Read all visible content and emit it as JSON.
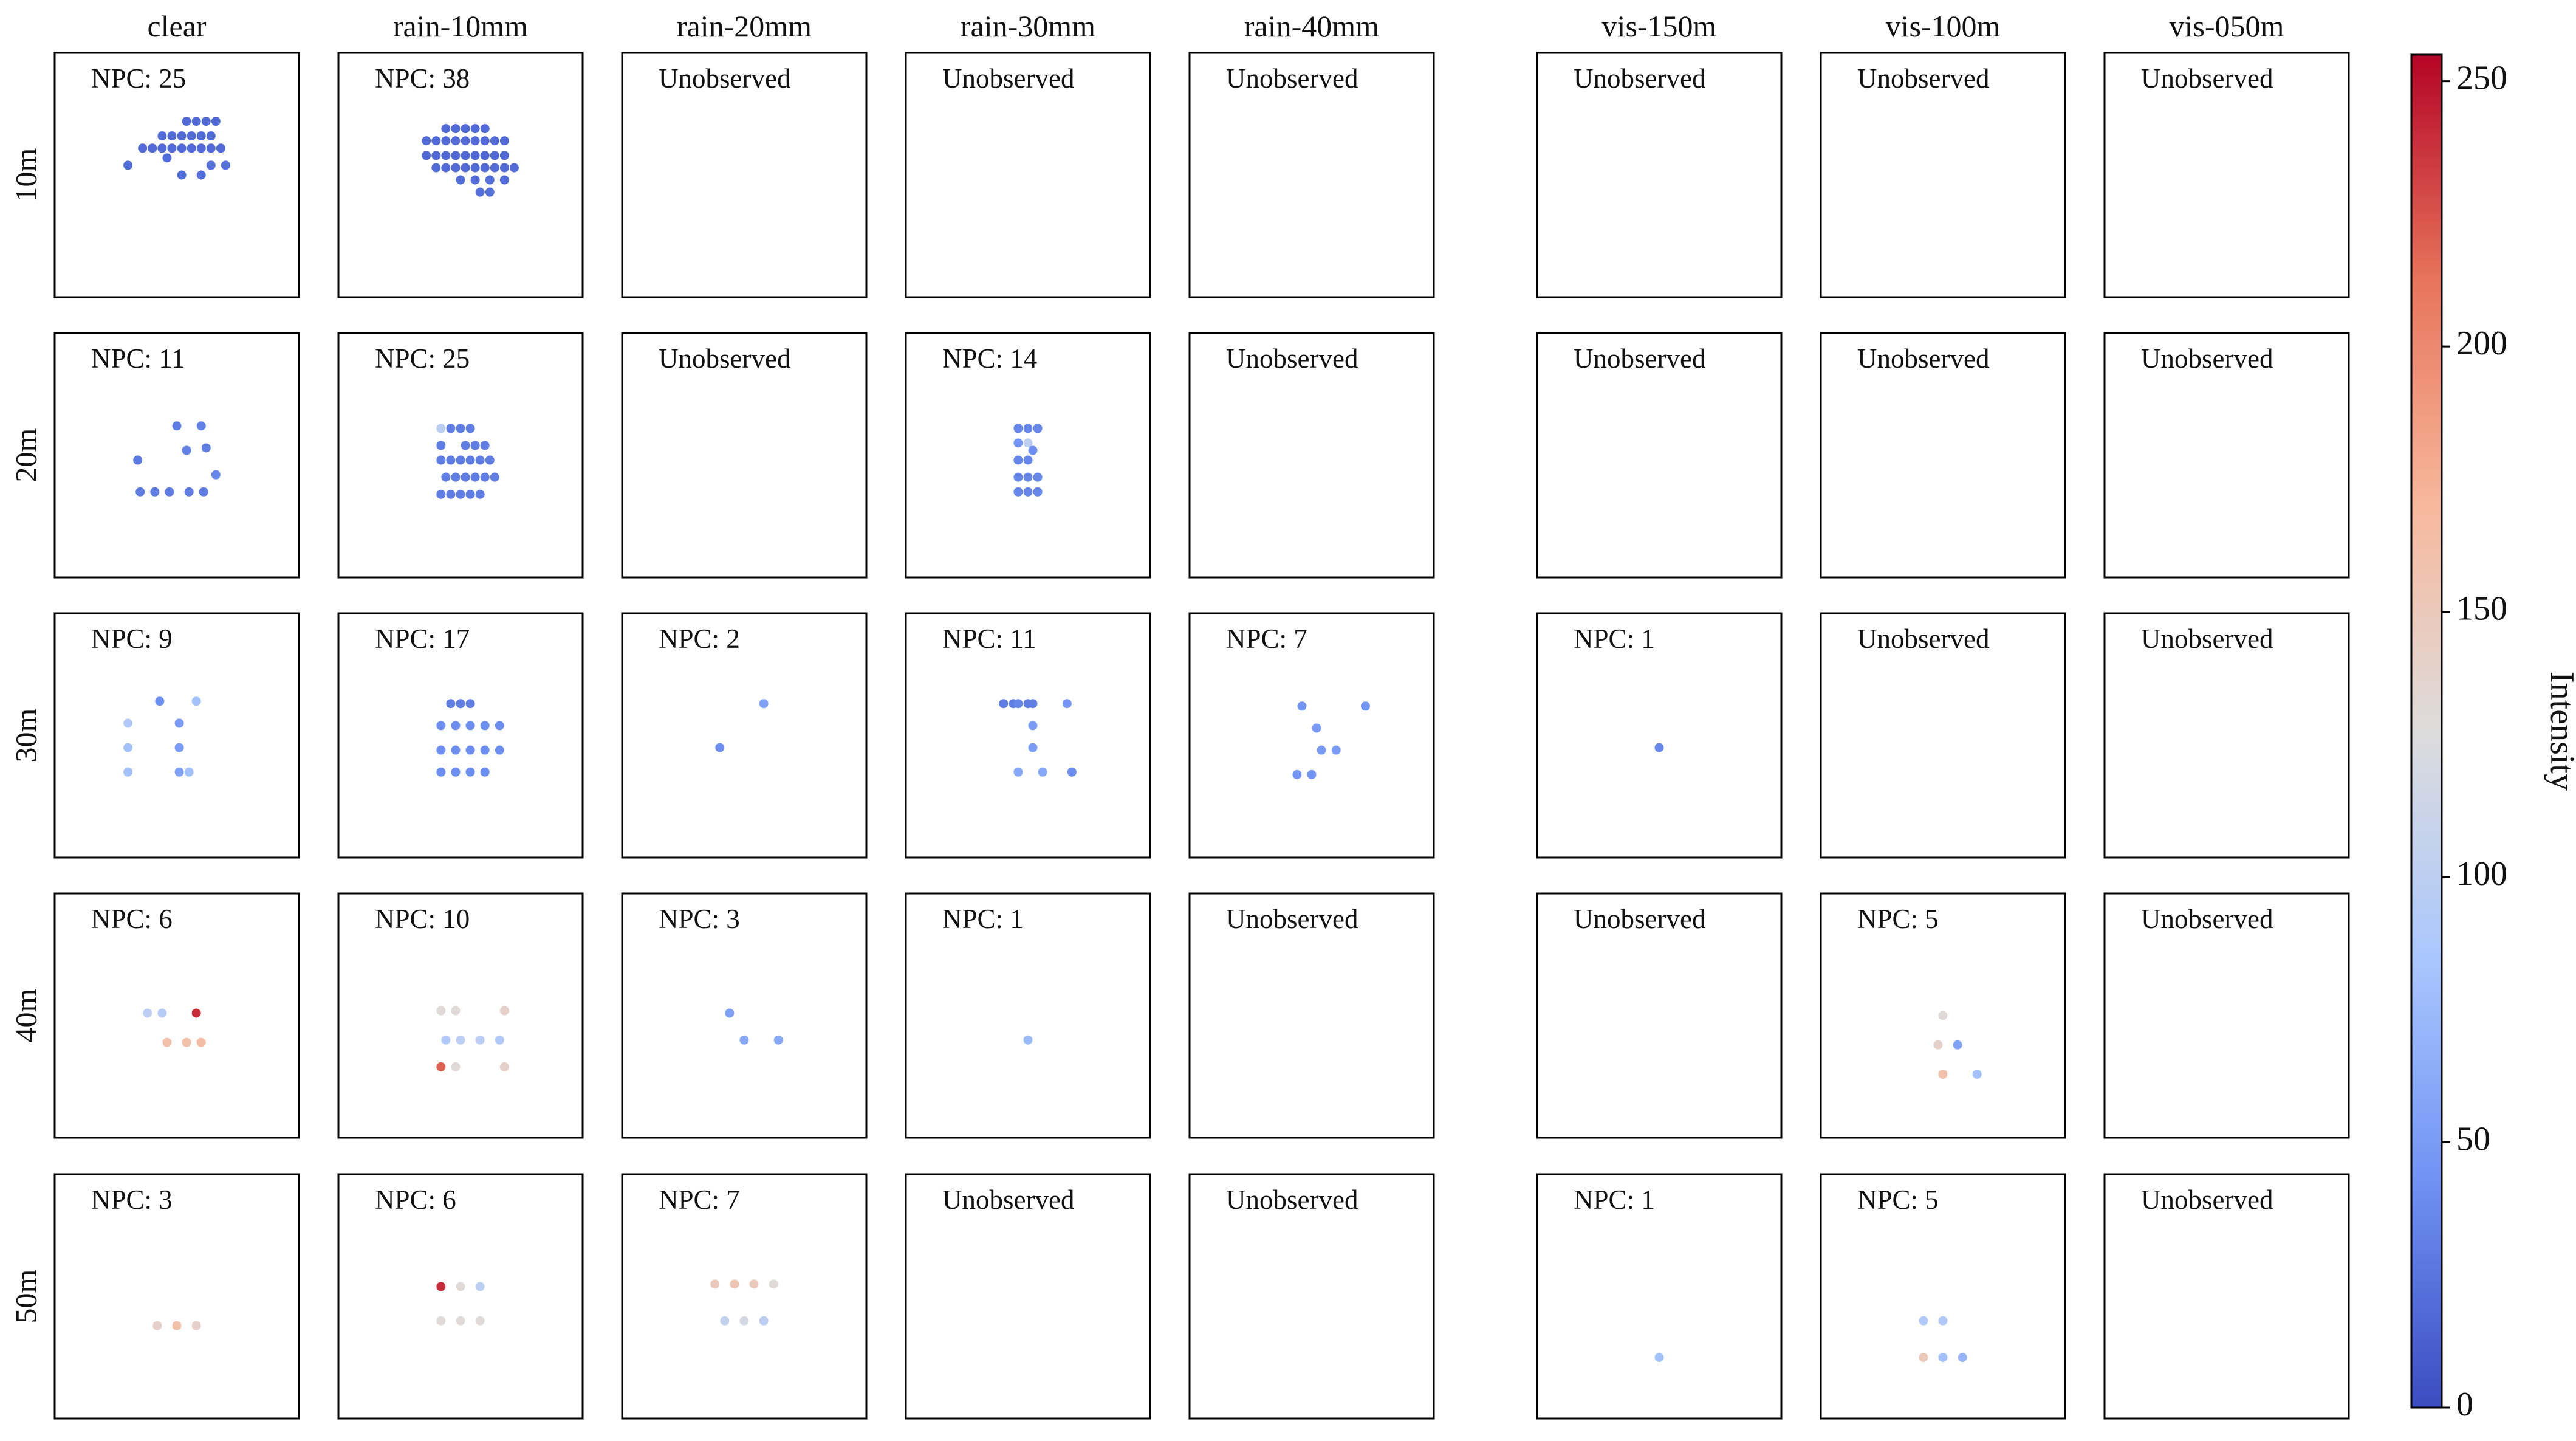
{
  "chart_data": {
    "type": "scatter",
    "columns": [
      "clear",
      "rain-10mm",
      "rain-20mm",
      "rain-30mm",
      "rain-40mm",
      "vis-150m",
      "vis-100m",
      "vis-050m"
    ],
    "rows": [
      "10m",
      "20m",
      "30m",
      "40m",
      "50m"
    ],
    "unobserved_label": "Unobserved",
    "npc_prefix": "NPC: ",
    "colorbar": {
      "label": "Intensity",
      "range": [
        0,
        255
      ],
      "ticks": [
        0,
        50,
        100,
        150,
        200,
        250
      ],
      "colormap": "coolwarm",
      "stops": [
        "#3b4cc0",
        "#6f92f3",
        "#aac7fd",
        "#dddcdc",
        "#f7b89c",
        "#e7745b",
        "#b40426"
      ]
    },
    "cell_units": {
      "x_range": [
        0,
        100
      ],
      "y_range": [
        0,
        100
      ]
    },
    "panels": [
      [
        {
          "npc": 25,
          "points": [
            [
              30,
              46,
              20
            ],
            [
              36,
              39,
              18
            ],
            [
              40,
              39,
              18
            ],
            [
              44,
              39,
              18
            ],
            [
              48,
              39,
              18
            ],
            [
              52,
              39,
              18
            ],
            [
              56,
              39,
              18
            ],
            [
              60,
              39,
              18
            ],
            [
              64,
              39,
              18
            ],
            [
              68,
              39,
              18
            ],
            [
              44,
              34,
              18
            ],
            [
              48,
              34,
              18
            ],
            [
              52,
              34,
              18
            ],
            [
              56,
              34,
              18
            ],
            [
              60,
              34,
              18
            ],
            [
              64,
              34,
              18
            ],
            [
              54,
              28,
              18
            ],
            [
              58,
              28,
              18
            ],
            [
              62,
              28,
              18
            ],
            [
              66,
              28,
              18
            ],
            [
              46,
              43,
              20
            ],
            [
              64,
              46,
              22
            ],
            [
              70,
              46,
              22
            ],
            [
              52,
              50,
              20
            ],
            [
              60,
              50,
              20
            ]
          ]
        },
        {
          "npc": 38,
          "points": [
            [
              44,
              31,
              18
            ],
            [
              48,
              31,
              18
            ],
            [
              52,
              31,
              18
            ],
            [
              56,
              31,
              18
            ],
            [
              60,
              31,
              18
            ],
            [
              36,
              36,
              18
            ],
            [
              40,
              36,
              18
            ],
            [
              44,
              36,
              18
            ],
            [
              48,
              36,
              18
            ],
            [
              52,
              36,
              18
            ],
            [
              56,
              36,
              18
            ],
            [
              60,
              36,
              18
            ],
            [
              64,
              36,
              18
            ],
            [
              68,
              36,
              18
            ],
            [
              36,
              42,
              18
            ],
            [
              40,
              42,
              18
            ],
            [
              44,
              42,
              18
            ],
            [
              48,
              42,
              18
            ],
            [
              52,
              42,
              18
            ],
            [
              56,
              42,
              18
            ],
            [
              60,
              42,
              18
            ],
            [
              64,
              42,
              18
            ],
            [
              68,
              42,
              18
            ],
            [
              40,
              47,
              18
            ],
            [
              44,
              47,
              18
            ],
            [
              48,
              47,
              18
            ],
            [
              52,
              47,
              18
            ],
            [
              56,
              47,
              18
            ],
            [
              60,
              47,
              18
            ],
            [
              64,
              47,
              18
            ],
            [
              68,
              47,
              18
            ],
            [
              72,
              47,
              18
            ],
            [
              50,
              52,
              20
            ],
            [
              56,
              52,
              20
            ],
            [
              62,
              52,
              20
            ],
            [
              68,
              52,
              20
            ],
            [
              58,
              57,
              22
            ],
            [
              62,
              57,
              22
            ]
          ]
        },
        null,
        null,
        null,
        null,
        null,
        null
      ],
      [
        {
          "npc": 11,
          "points": [
            [
              50,
              38,
              30
            ],
            [
              60,
              38,
              32
            ],
            [
              34,
              52,
              28
            ],
            [
              62,
              47,
              30
            ],
            [
              66,
              58,
              36
            ],
            [
              35,
              65,
              30
            ],
            [
              41,
              65,
              30
            ],
            [
              47,
              65,
              30
            ],
            [
              55,
              65,
              30
            ],
            [
              61,
              65,
              30
            ],
            [
              54,
              48,
              32
            ]
          ]
        },
        {
          "npc": 25,
          "points": [
            [
              42,
              39,
              100
            ],
            [
              46,
              39,
              30
            ],
            [
              50,
              39,
              30
            ],
            [
              54,
              39,
              30
            ],
            [
              42,
              46,
              30
            ],
            [
              52,
              46,
              30
            ],
            [
              56,
              46,
              30
            ],
            [
              60,
              46,
              30
            ],
            [
              42,
              52,
              30
            ],
            [
              46,
              52,
              30
            ],
            [
              50,
              52,
              30
            ],
            [
              54,
              52,
              30
            ],
            [
              58,
              52,
              30
            ],
            [
              62,
              52,
              30
            ],
            [
              44,
              59,
              30
            ],
            [
              48,
              59,
              30
            ],
            [
              52,
              59,
              30
            ],
            [
              56,
              59,
              30
            ],
            [
              60,
              59,
              30
            ],
            [
              64,
              59,
              30
            ],
            [
              42,
              66,
              30
            ],
            [
              46,
              66,
              30
            ],
            [
              50,
              66,
              30
            ],
            [
              54,
              66,
              30
            ],
            [
              58,
              66,
              30
            ]
          ]
        },
        null,
        {
          "npc": 14,
          "points": [
            [
              46,
              39,
              35
            ],
            [
              50,
              39,
              35
            ],
            [
              54,
              39,
              35
            ],
            [
              46,
              45,
              45
            ],
            [
              50,
              45,
              100
            ],
            [
              46,
              52,
              35
            ],
            [
              50,
              52,
              35
            ],
            [
              46,
              59,
              35
            ],
            [
              50,
              59,
              35
            ],
            [
              54,
              59,
              35
            ],
            [
              46,
              65,
              35
            ],
            [
              50,
              65,
              35
            ],
            [
              54,
              65,
              35
            ],
            [
              52,
              48,
              40
            ]
          ]
        },
        null,
        null,
        null,
        null
      ],
      [
        {
          "npc": 9,
          "points": [
            [
              30,
              45,
              90
            ],
            [
              30,
              55,
              80
            ],
            [
              30,
              65,
              80
            ],
            [
              43,
              36,
              40
            ],
            [
              58,
              36,
              80
            ],
            [
              51,
              45,
              50
            ],
            [
              51,
              55,
              50
            ],
            [
              51,
              65,
              55
            ],
            [
              55,
              65,
              80
            ]
          ]
        },
        {
          "npc": 17,
          "points": [
            [
              46,
              37,
              30
            ],
            [
              50,
              37,
              30
            ],
            [
              54,
              37,
              30
            ],
            [
              42,
              46,
              40
            ],
            [
              48,
              46,
              40
            ],
            [
              54,
              46,
              40
            ],
            [
              60,
              46,
              40
            ],
            [
              66,
              46,
              40
            ],
            [
              42,
              56,
              40
            ],
            [
              48,
              56,
              40
            ],
            [
              54,
              56,
              40
            ],
            [
              60,
              56,
              40
            ],
            [
              66,
              56,
              40
            ],
            [
              42,
              65,
              40
            ],
            [
              48,
              65,
              40
            ],
            [
              54,
              65,
              40
            ],
            [
              60,
              65,
              40
            ]
          ]
        },
        {
          "npc": 2,
          "points": [
            [
              58,
              37,
              55
            ],
            [
              40,
              55,
              40
            ]
          ]
        },
        {
          "npc": 11,
          "points": [
            [
              40,
              37,
              30
            ],
            [
              44,
              37,
              30
            ],
            [
              50,
              37,
              30
            ],
            [
              66,
              37,
              45
            ],
            [
              52,
              46,
              50
            ],
            [
              52,
              55,
              50
            ],
            [
              46,
              65,
              60
            ],
            [
              56,
              65,
              60
            ],
            [
              68,
              65,
              40
            ],
            [
              46,
              37,
              35
            ],
            [
              52,
              37,
              30
            ]
          ]
        },
        {
          "npc": 7,
          "points": [
            [
              46,
              38,
              45
            ],
            [
              72,
              38,
              45
            ],
            [
              52,
              47,
              50
            ],
            [
              54,
              56,
              50
            ],
            [
              60,
              56,
              50
            ],
            [
              44,
              66,
              45
            ],
            [
              50,
              66,
              45
            ]
          ]
        },
        {
          "npc": 1,
          "points": [
            [
              50,
              55,
              35
            ]
          ]
        },
        null,
        null
      ],
      [
        {
          "npc": 6,
          "points": [
            [
              38,
              49,
              100
            ],
            [
              44,
              49,
              95
            ],
            [
              58,
              49,
              240
            ],
            [
              46,
              61,
              160
            ],
            [
              54,
              61,
              160
            ],
            [
              60,
              61,
              165
            ]
          ]
        },
        {
          "npc": 10,
          "points": [
            [
              42,
              48,
              130
            ],
            [
              48,
              48,
              130
            ],
            [
              68,
              48,
              140
            ],
            [
              44,
              60,
              90
            ],
            [
              50,
              60,
              100
            ],
            [
              58,
              60,
              100
            ],
            [
              66,
              60,
              90
            ],
            [
              42,
              71,
              220
            ],
            [
              48,
              71,
              130
            ],
            [
              68,
              71,
              140
            ]
          ]
        },
        {
          "npc": 3,
          "points": [
            [
              44,
              49,
              55
            ],
            [
              50,
              60,
              60
            ],
            [
              64,
              60,
              60
            ]
          ]
        },
        {
          "npc": 1,
          "points": [
            [
              50,
              60,
              75
            ]
          ]
        },
        null,
        null,
        {
          "npc": 5,
          "points": [
            [
              50,
              50,
              130
            ],
            [
              48,
              62,
              140
            ],
            [
              56,
              62,
              55
            ],
            [
              50,
              74,
              160
            ],
            [
              64,
              74,
              80
            ]
          ]
        },
        null
      ],
      [
        {
          "npc": 3,
          "points": [
            [
              42,
              62,
              140
            ],
            [
              50,
              62,
              160
            ],
            [
              58,
              62,
              140
            ]
          ]
        },
        {
          "npc": 6,
          "points": [
            [
              42,
              46,
              240
            ],
            [
              50,
              46,
              130
            ],
            [
              58,
              46,
              100
            ],
            [
              42,
              60,
              130
            ],
            [
              50,
              60,
              130
            ],
            [
              58,
              60,
              130
            ]
          ]
        },
        {
          "npc": 7,
          "points": [
            [
              38,
              45,
              150
            ],
            [
              46,
              45,
              155
            ],
            [
              54,
              45,
              150
            ],
            [
              62,
              45,
              130
            ],
            [
              42,
              60,
              105
            ],
            [
              50,
              60,
              120
            ],
            [
              58,
              60,
              100
            ]
          ]
        },
        null,
        null,
        {
          "npc": 1,
          "points": [
            [
              50,
              75,
              80
            ]
          ]
        },
        {
          "npc": 5,
          "points": [
            [
              42,
              60,
              90
            ],
            [
              50,
              60,
              90
            ],
            [
              42,
              75,
              150
            ],
            [
              50,
              75,
              80
            ],
            [
              58,
              75,
              70
            ]
          ]
        },
        null
      ]
    ]
  }
}
